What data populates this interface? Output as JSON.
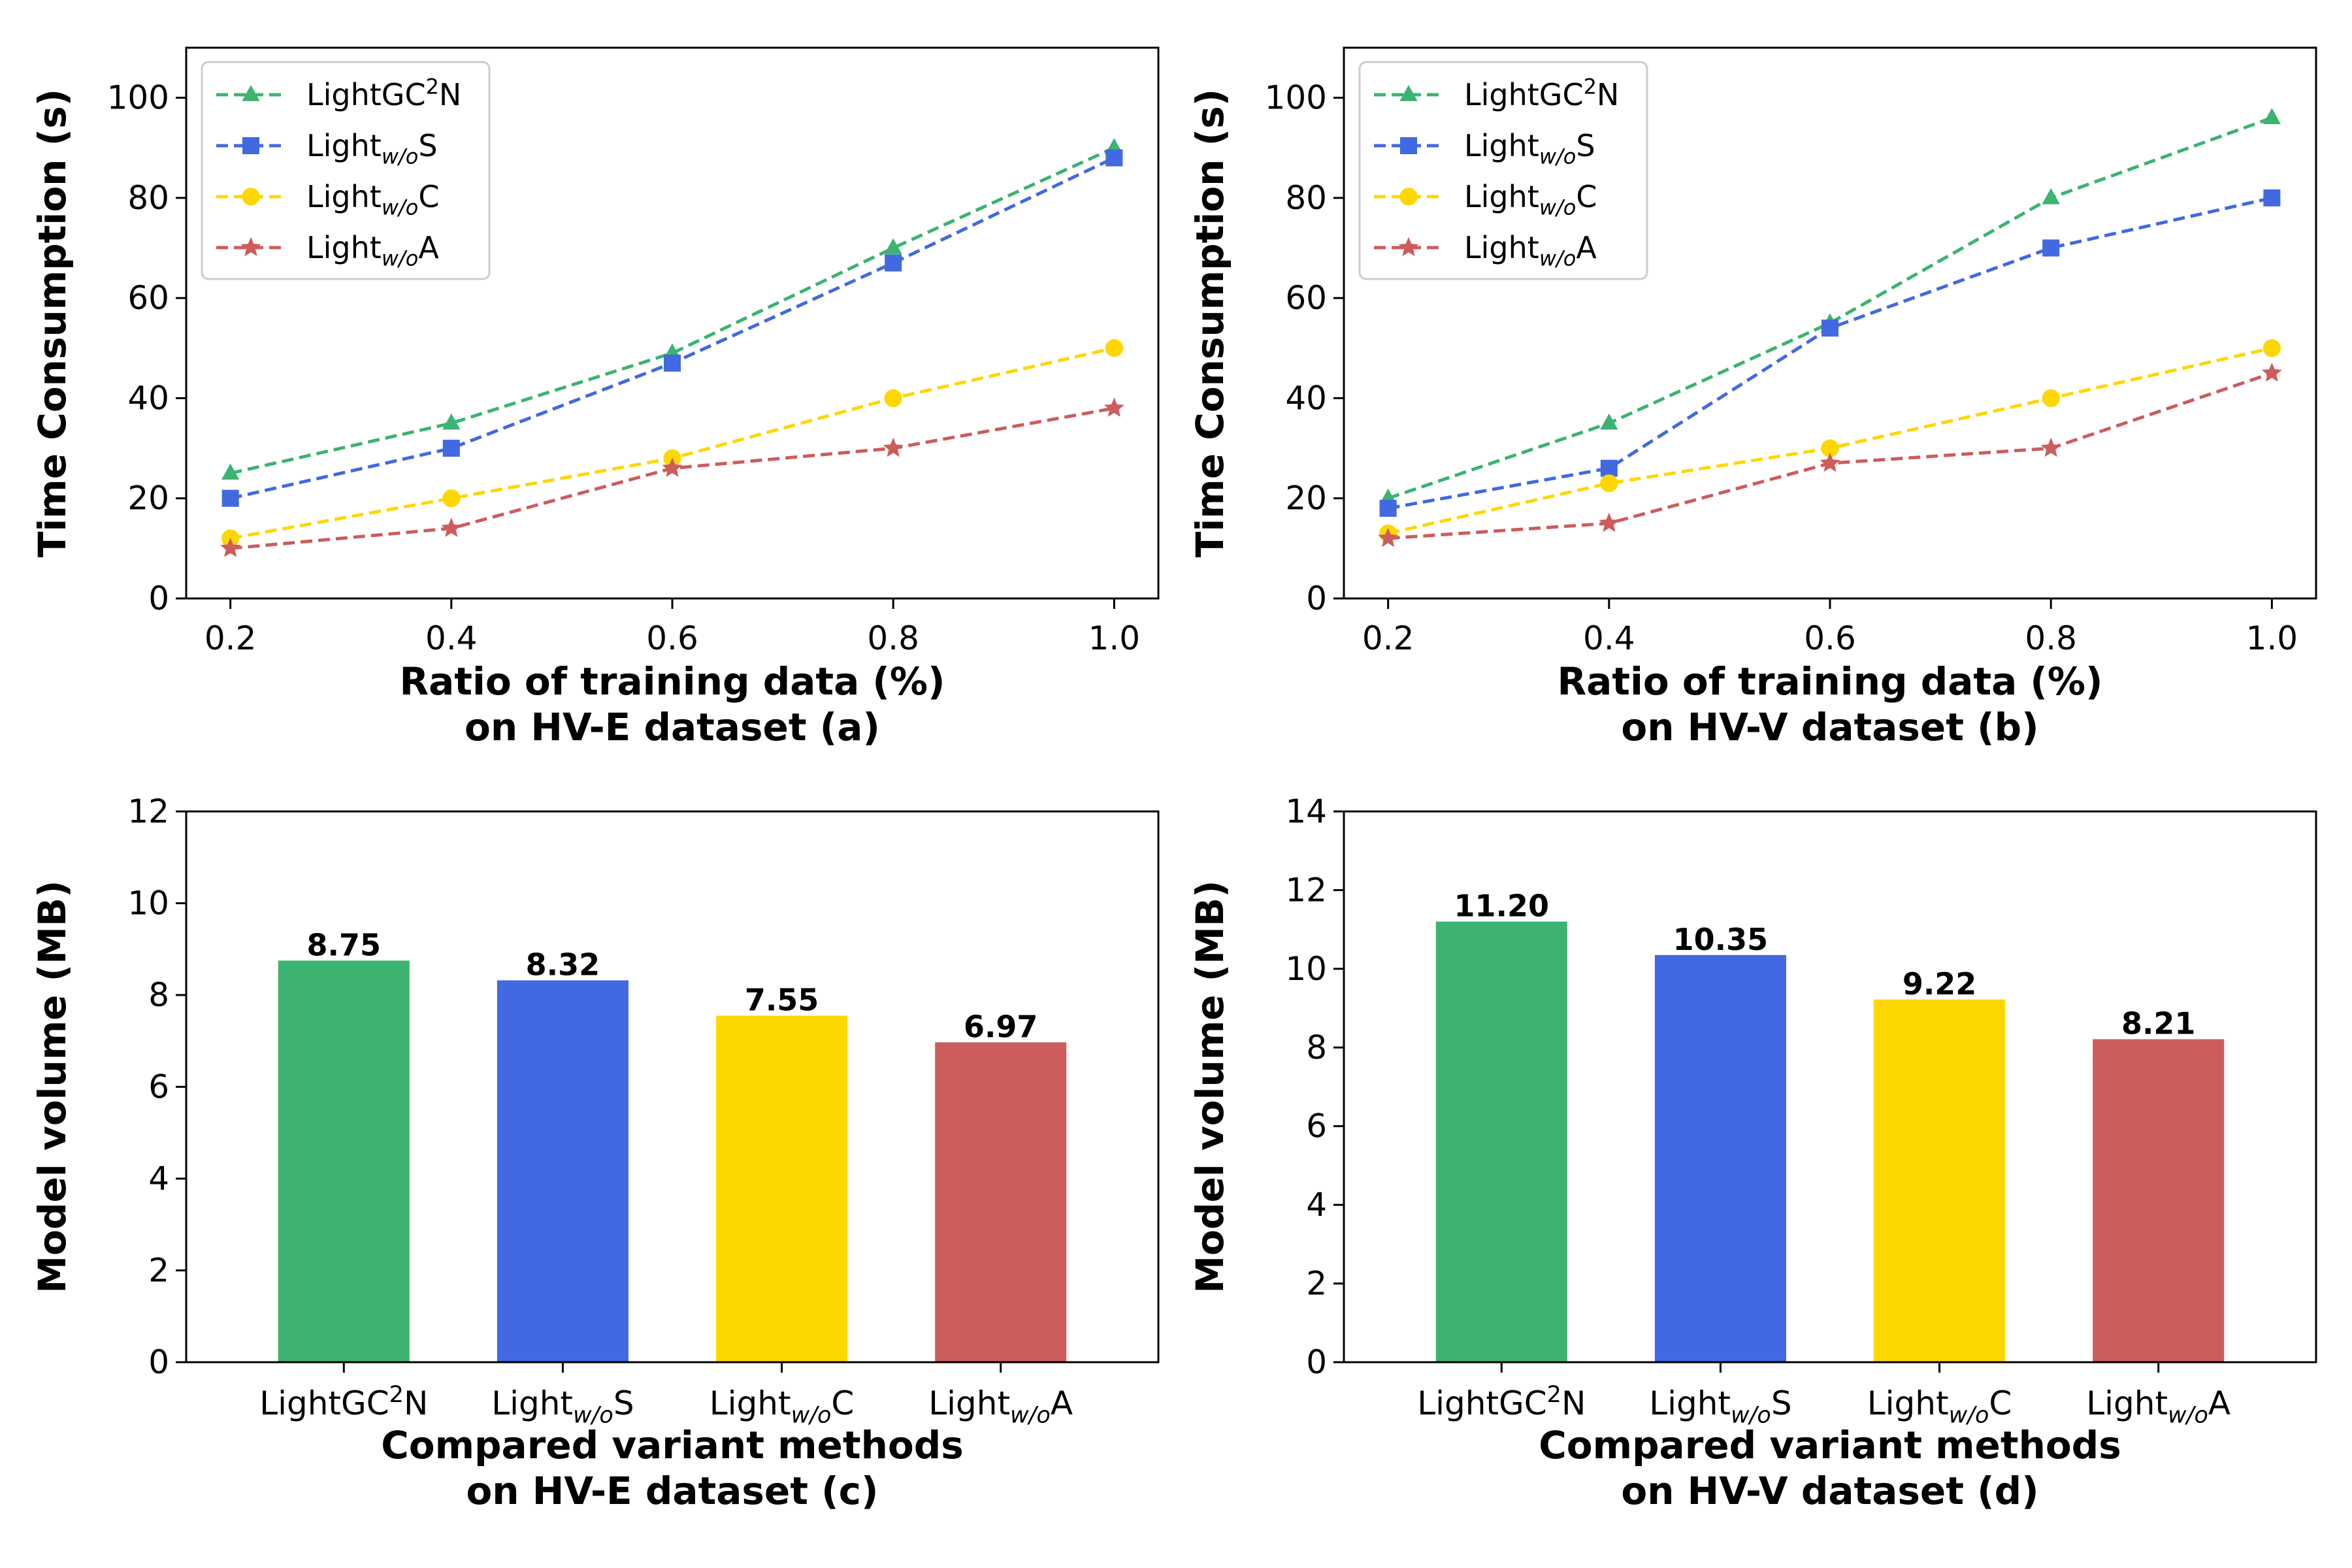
{
  "chart_data": [
    {
      "id": "a",
      "type": "line",
      "xlabel_lines": [
        "Ratio of training data (%)",
        "on HV-E dataset (a)"
      ],
      "ylabel": "Time Consumption (s)",
      "x": [
        0.2,
        0.4,
        0.6,
        0.8,
        1.0
      ],
      "xticks": [
        "0.2",
        "0.4",
        "0.6",
        "0.8",
        "1.0"
      ],
      "xlim": [
        0.16,
        1.04
      ],
      "ylim": [
        0,
        110
      ],
      "yticks": [
        0,
        20,
        40,
        60,
        80,
        100
      ],
      "grid": false,
      "legend_position": "top-left",
      "series": [
        {
          "name": "LightGC²N",
          "label": {
            "base": "LightGC",
            "sup": "2",
            "tail": "N"
          },
          "color": "#3cb371",
          "marker": "triangle",
          "values": [
            25,
            35,
            49,
            70,
            90
          ]
        },
        {
          "name": "Lightw/oS",
          "label": {
            "base": "Light",
            "sub": "w/o",
            "tail": "S"
          },
          "color": "#4169e1",
          "marker": "square",
          "values": [
            20,
            30,
            47,
            67,
            88
          ]
        },
        {
          "name": "Lightw/oC",
          "label": {
            "base": "Light",
            "sub": "w/o",
            "tail": "C"
          },
          "color": "#ffd700",
          "marker": "circle",
          "values": [
            12,
            20,
            28,
            40,
            50
          ]
        },
        {
          "name": "Lightw/oA",
          "label": {
            "base": "Light",
            "sub": "w/o",
            "tail": "A"
          },
          "color": "#cd5c5c",
          "marker": "star",
          "values": [
            10,
            14,
            26,
            30,
            38
          ]
        }
      ]
    },
    {
      "id": "b",
      "type": "line",
      "xlabel_lines": [
        "Ratio of training data (%)",
        "on HV-V dataset (b)"
      ],
      "ylabel": "Time Consumption (s)",
      "x": [
        0.2,
        0.4,
        0.6,
        0.8,
        1.0
      ],
      "xticks": [
        "0.2",
        "0.4",
        "0.6",
        "0.8",
        "1.0"
      ],
      "xlim": [
        0.16,
        1.04
      ],
      "ylim": [
        0,
        110
      ],
      "yticks": [
        0,
        20,
        40,
        60,
        80,
        100
      ],
      "grid": false,
      "legend_position": "top-left",
      "series": [
        {
          "name": "LightGC²N",
          "label": {
            "base": "LightGC",
            "sup": "2",
            "tail": "N"
          },
          "color": "#3cb371",
          "marker": "triangle",
          "values": [
            20,
            35,
            55,
            80,
            96
          ]
        },
        {
          "name": "Lightw/oS",
          "label": {
            "base": "Light",
            "sub": "w/o",
            "tail": "S"
          },
          "color": "#4169e1",
          "marker": "square",
          "values": [
            18,
            26,
            54,
            70,
            80
          ]
        },
        {
          "name": "Lightw/oC",
          "label": {
            "base": "Light",
            "sub": "w/o",
            "tail": "C"
          },
          "color": "#ffd700",
          "marker": "circle",
          "values": [
            13,
            23,
            30,
            40,
            50
          ]
        },
        {
          "name": "Lightw/oA",
          "label": {
            "base": "Light",
            "sub": "w/o",
            "tail": "A"
          },
          "color": "#cd5c5c",
          "marker": "star",
          "values": [
            12,
            15,
            27,
            30,
            45
          ]
        }
      ]
    },
    {
      "id": "c",
      "type": "bar",
      "xlabel_lines": [
        "Compared variant methods",
        "on HV-E dataset (c)"
      ],
      "ylabel": "Model volume (MB)",
      "ylim": [
        0,
        12
      ],
      "yticks": [
        0,
        2,
        4,
        6,
        8,
        10,
        12
      ],
      "grid": false,
      "categories": [
        {
          "name": "LightGC²N",
          "label": {
            "base": "LightGC",
            "sup": "2",
            "tail": "N"
          }
        },
        {
          "name": "Lightw/oS",
          "label": {
            "base": "Light",
            "sub": "w/o",
            "tail": "S"
          }
        },
        {
          "name": "Lightw/oC",
          "label": {
            "base": "Light",
            "sub": "w/o",
            "tail": "C"
          }
        },
        {
          "name": "Lightw/oA",
          "label": {
            "base": "Light",
            "sub": "w/o",
            "tail": "A"
          }
        }
      ],
      "values": [
        8.75,
        8.32,
        7.55,
        6.97
      ],
      "value_labels": [
        "8.75",
        "8.32",
        "7.55",
        "6.97"
      ],
      "colors": [
        "#3cb371",
        "#4169e1",
        "#ffd700",
        "#cd5c5c"
      ]
    },
    {
      "id": "d",
      "type": "bar",
      "xlabel_lines": [
        "Compared variant methods",
        "on HV-V dataset (d)"
      ],
      "ylabel": "Model volume (MB)",
      "ylim": [
        0,
        14
      ],
      "yticks": [
        0,
        2,
        4,
        6,
        8,
        10,
        12,
        14
      ],
      "grid": false,
      "categories": [
        {
          "name": "LightGC²N",
          "label": {
            "base": "LightGC",
            "sup": "2",
            "tail": "N"
          }
        },
        {
          "name": "Lightw/oS",
          "label": {
            "base": "Light",
            "sub": "w/o",
            "tail": "S"
          }
        },
        {
          "name": "Lightw/oC",
          "label": {
            "base": "Light",
            "sub": "w/o",
            "tail": "C"
          }
        },
        {
          "name": "Lightw/oA",
          "label": {
            "base": "Light",
            "sub": "w/o",
            "tail": "A"
          }
        }
      ],
      "values": [
        11.2,
        10.35,
        9.22,
        8.21
      ],
      "value_labels": [
        "11.20",
        "10.35",
        "9.22",
        "8.21"
      ],
      "colors": [
        "#3cb371",
        "#4169e1",
        "#ffd700",
        "#cd5c5c"
      ]
    }
  ]
}
